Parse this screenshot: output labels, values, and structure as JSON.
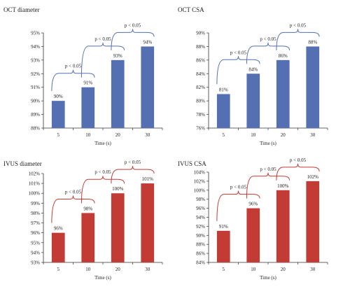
{
  "colors": {
    "blue": "#5570b2",
    "red": "#c23b34",
    "axis": "#333333"
  },
  "chart_data": [
    {
      "type": "bar",
      "title": "OCT diameter",
      "categories": [
        "5",
        "10",
        "20",
        "30"
      ],
      "values": [
        90,
        91,
        93,
        94
      ],
      "data_labels": [
        "90%",
        "91%",
        "93%",
        "94%"
      ],
      "xlabel": "Time (s)",
      "ylabel": "",
      "ylim": [
        88,
        95
      ],
      "yticks": [
        88,
        89,
        90,
        91,
        92,
        93,
        94,
        95
      ],
      "ytick_labels": [
        "88%",
        "89%",
        "90%",
        "91%",
        "92%",
        "93%",
        "94%",
        "95%"
      ],
      "grid": false,
      "color": "blue",
      "brackets": [
        {
          "between": [
            0,
            1
          ],
          "label": "p < 0.05"
        },
        {
          "between": [
            1,
            2
          ],
          "label": "p < 0.05"
        },
        {
          "between": [
            2,
            3
          ],
          "label": "p < 0.05"
        }
      ]
    },
    {
      "type": "bar",
      "title": "OCT CSA",
      "categories": [
        "5",
        "10",
        "20",
        "30"
      ],
      "values": [
        81,
        84,
        86,
        88
      ],
      "data_labels": [
        "81%",
        "84%",
        "86%",
        "88%"
      ],
      "xlabel": "Time (s)",
      "ylabel": "",
      "ylim": [
        76,
        90
      ],
      "yticks": [
        76,
        78,
        80,
        82,
        84,
        86,
        88,
        90
      ],
      "ytick_labels": [
        "76%",
        "78%",
        "80%",
        "82%",
        "84%",
        "86%",
        "88%",
        "90%"
      ],
      "grid": false,
      "color": "blue",
      "brackets": [
        {
          "between": [
            0,
            1
          ],
          "label": "p < 0.05"
        },
        {
          "between": [
            1,
            2
          ],
          "label": "p < 0.05"
        },
        {
          "between": [
            2,
            3
          ],
          "label": "p < 0.05"
        }
      ]
    },
    {
      "type": "bar",
      "title": "IVUS diameter",
      "categories": [
        "5",
        "10",
        "20",
        "30"
      ],
      "values": [
        96,
        98,
        100,
        101
      ],
      "data_labels": [
        "96%",
        "98%",
        "100%",
        "101%"
      ],
      "xlabel": "Time (s)",
      "ylabel": "",
      "ylim": [
        93,
        102
      ],
      "yticks": [
        93,
        94,
        95,
        96,
        97,
        98,
        99,
        100,
        101,
        102
      ],
      "ytick_labels": [
        "93%",
        "94%",
        "95%",
        "96%",
        "97%",
        "98%",
        "99%",
        "100%",
        "101%",
        "102%"
      ],
      "grid": false,
      "color": "red",
      "brackets": [
        {
          "between": [
            0,
            1
          ],
          "label": "p < 0.05"
        },
        {
          "between": [
            1,
            2
          ],
          "label": "p < 0.05"
        },
        {
          "between": [
            2,
            3
          ],
          "label": "p < 0.05"
        }
      ]
    },
    {
      "type": "bar",
      "title": "IVUS CSA",
      "categories": [
        "5",
        "10",
        "20",
        "30"
      ],
      "values": [
        91,
        96,
        100,
        102
      ],
      "data_labels": [
        "91%",
        "96%",
        "100%",
        "102%"
      ],
      "xlabel": "Time (s)",
      "ylabel": "",
      "ylim": [
        84,
        104
      ],
      "yticks": [
        84,
        86,
        88,
        90,
        92,
        94,
        96,
        98,
        100,
        102,
        104
      ],
      "ytick_labels": [
        "84%",
        "86%",
        "88%",
        "90%",
        "92%",
        "94%",
        "96%",
        "98%",
        "100%",
        "102%",
        "104%"
      ],
      "grid": false,
      "color": "red",
      "brackets": [
        {
          "between": [
            0,
            1
          ],
          "label": "p < 0.05"
        },
        {
          "between": [
            1,
            2
          ],
          "label": "p < 0.05"
        },
        {
          "between": [
            2,
            3
          ],
          "label": "p < 0.05"
        }
      ]
    }
  ]
}
